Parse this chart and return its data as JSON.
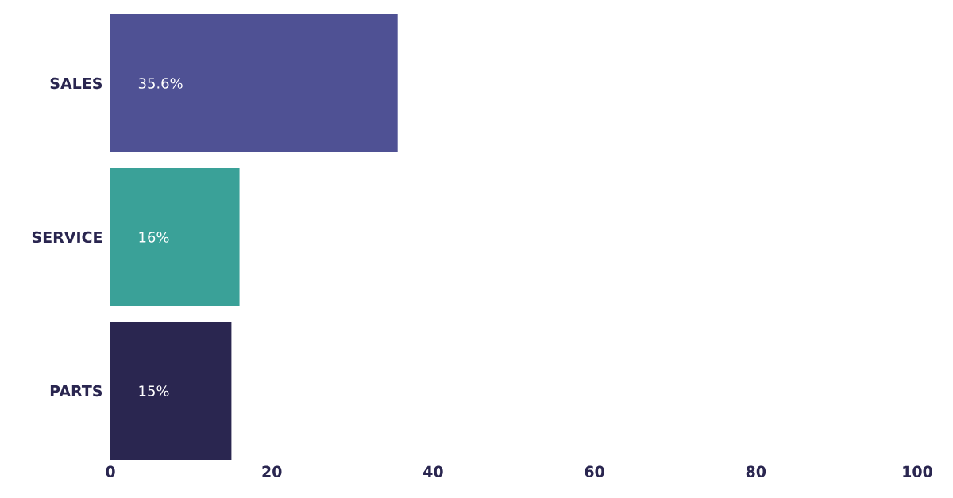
{
  "chart_data": {
    "type": "bar",
    "orientation": "horizontal",
    "categories": [
      "SALES",
      "SERVICE",
      "PARTS"
    ],
    "values": [
      35.6,
      16,
      15
    ],
    "colors": [
      "#4f5194",
      "#3aa198",
      "#2a2650"
    ],
    "value_labels": [
      "35.6%",
      "16%",
      "15%"
    ],
    "xlim": [
      0,
      100
    ],
    "xticks": [
      0,
      20,
      40,
      60,
      80,
      100
    ]
  }
}
